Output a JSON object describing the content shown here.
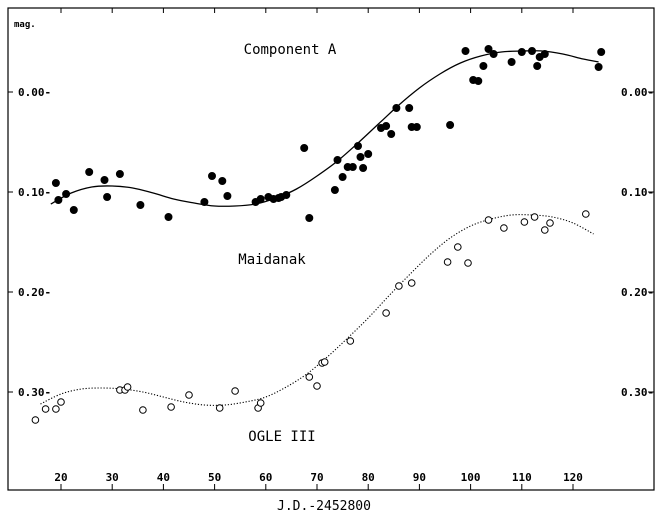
{
  "chart_data": {
    "type": "scatter",
    "title": "",
    "xlabel": "J.D.-2452800",
    "ylabel": "mag.",
    "xlim": [
      13,
      130
    ],
    "ylim": [
      0.4,
      -0.045
    ],
    "y_inverted": true,
    "x_ticks": [
      20,
      30,
      40,
      50,
      60,
      70,
      80,
      90,
      100,
      110,
      120
    ],
    "x_tick_labels": [
      "20",
      "30",
      "40",
      "50",
      "60",
      "70",
      "80",
      "90",
      "100",
      "110",
      "120"
    ],
    "y_ticks": [
      0.0,
      0.1,
      0.2,
      0.3
    ],
    "y_tick_labels": [
      "0.00-",
      "0.10-",
      "0.20-",
      "0.30-"
    ],
    "y_tick_labels_right": [
      "0.00-",
      "0.10-",
      "0.20-",
      "0.30-"
    ],
    "annotations": [
      "Component A",
      "Maidanak",
      "OGLE III"
    ],
    "grid": false,
    "series": [
      {
        "name": "Component A",
        "marker": "filled-circle",
        "color": "#000000",
        "x": [
          19.0,
          19.5,
          21.0,
          22.5,
          25.5,
          28.5,
          29.0,
          31.5,
          35.5,
          41.0,
          48.0,
          49.5,
          51.5,
          52.5,
          58.0,
          59.0,
          60.5,
          61.5,
          62.5,
          63.0,
          64.0,
          67.5,
          68.5,
          73.5,
          74.0,
          75.0,
          76.0,
          77.0,
          78.0,
          78.5,
          79.0,
          80.0,
          82.5,
          83.5,
          84.5,
          85.5,
          88.0,
          88.5,
          89.5,
          96.0,
          99.0,
          100.5,
          101.5,
          102.5,
          103.5,
          104.5,
          108.0,
          110.0,
          112.0,
          113.0,
          113.5,
          114.5,
          125.0,
          125.5
        ],
        "y": [
          0.091,
          0.108,
          0.102,
          0.118,
          0.08,
          0.088,
          0.105,
          0.082,
          0.113,
          0.125,
          0.11,
          0.084,
          0.089,
          0.104,
          0.11,
          0.107,
          0.105,
          0.107,
          0.106,
          0.105,
          0.103,
          0.056,
          0.126,
          0.098,
          0.068,
          0.085,
          0.075,
          0.075,
          0.054,
          0.065,
          0.076,
          0.062,
          0.036,
          0.034,
          0.042,
          0.016,
          0.016,
          0.035,
          0.035,
          0.033,
          -0.041,
          -0.012,
          -0.011,
          -0.026,
          -0.043,
          -0.038,
          -0.03,
          -0.04,
          -0.041,
          -0.026,
          -0.035,
          -0.038,
          -0.025,
          -0.04
        ],
        "fit_curve": {
          "style": "solid",
          "x": [
            18,
            22,
            26,
            30,
            34,
            38,
            42,
            46,
            50,
            54,
            58,
            62,
            66,
            70,
            74,
            78,
            82,
            86,
            90,
            94,
            98,
            102,
            106,
            110,
            114,
            118,
            122,
            125
          ],
          "y": [
            0.112,
            0.101,
            0.095,
            0.094,
            0.096,
            0.101,
            0.107,
            0.111,
            0.114,
            0.114,
            0.112,
            0.106,
            0.097,
            0.084,
            0.069,
            0.051,
            0.032,
            0.013,
            -0.004,
            -0.018,
            -0.029,
            -0.036,
            -0.04,
            -0.041,
            -0.041,
            -0.038,
            -0.033,
            -0.03
          ]
        }
      },
      {
        "name": "OGLE III",
        "marker": "open-circle",
        "color": "#000000",
        "x": [
          15.0,
          17.0,
          19.0,
          20.0,
          31.5,
          32.5,
          33.0,
          36.0,
          41.5,
          45.0,
          51.0,
          54.0,
          58.5,
          59.0,
          68.5,
          70.0,
          71.0,
          71.5,
          76.5,
          83.5,
          86.0,
          88.5,
          95.5,
          97.5,
          99.5,
          103.5,
          106.5,
          110.5,
          112.5,
          114.5,
          115.5,
          122.5
        ],
        "y": [
          0.328,
          0.317,
          0.317,
          0.31,
          0.298,
          0.298,
          0.295,
          0.318,
          0.315,
          0.303,
          0.316,
          0.299,
          0.316,
          0.311,
          0.285,
          0.294,
          0.271,
          0.27,
          0.249,
          0.221,
          0.194,
          0.191,
          0.17,
          0.155,
          0.171,
          0.128,
          0.136,
          0.13,
          0.125,
          0.138,
          0.131,
          0.122
        ],
        "fit_curve": {
          "style": "dotted",
          "x": [
            16,
            20,
            24,
            28,
            32,
            36,
            40,
            44,
            48,
            52,
            56,
            60,
            64,
            68,
            72,
            76,
            80,
            84,
            88,
            92,
            96,
            100,
            104,
            108,
            112,
            116,
            120,
            124
          ],
          "y": [
            0.312,
            0.302,
            0.297,
            0.296,
            0.297,
            0.3,
            0.305,
            0.31,
            0.313,
            0.313,
            0.31,
            0.305,
            0.295,
            0.282,
            0.265,
            0.246,
            0.226,
            0.204,
            0.183,
            0.163,
            0.146,
            0.134,
            0.127,
            0.123,
            0.123,
            0.125,
            0.131,
            0.142
          ]
        }
      }
    ]
  }
}
